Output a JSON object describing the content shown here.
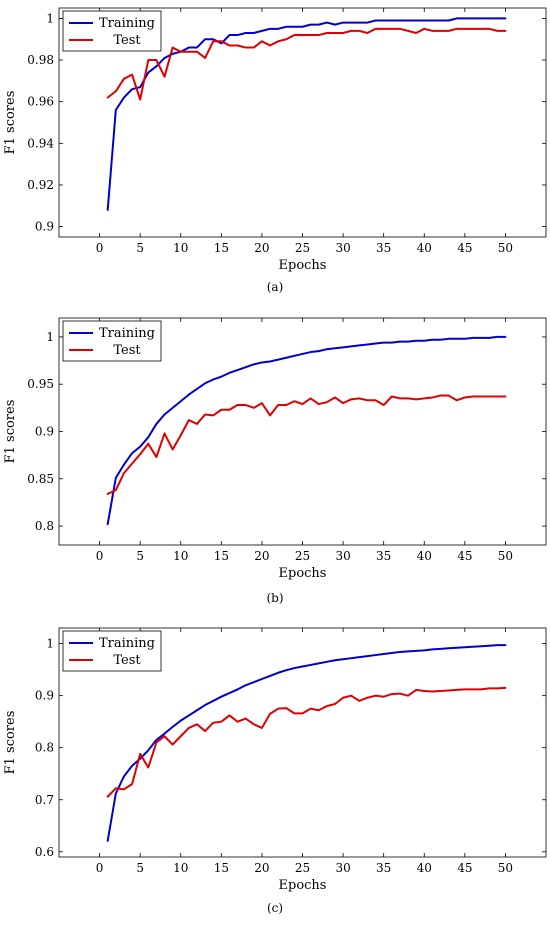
{
  "chart_data": [
    {
      "type": "line",
      "caption": "(a)",
      "xlabel": "Epochs",
      "ylabel": "F1 scores",
      "xlim": [
        -5,
        55
      ],
      "ylim": [
        0.895,
        1.005
      ],
      "xticks": [
        0,
        5,
        10,
        15,
        20,
        25,
        30,
        35,
        40,
        45,
        50
      ],
      "yticks": [
        0.9,
        0.92,
        0.94,
        0.96,
        0.98,
        1
      ],
      "ytick_labels": [
        "0.9",
        "0.92",
        "0.94",
        "0.96",
        "0.98",
        "1"
      ],
      "legend_position": "top-left",
      "x": [
        1,
        2,
        3,
        4,
        5,
        6,
        7,
        8,
        9,
        10,
        11,
        12,
        13,
        14,
        15,
        16,
        17,
        18,
        19,
        20,
        21,
        22,
        23,
        24,
        25,
        26,
        27,
        28,
        29,
        30,
        31,
        32,
        33,
        34,
        35,
        36,
        37,
        38,
        39,
        40,
        41,
        42,
        43,
        44,
        45,
        46,
        47,
        48,
        49,
        50
      ],
      "series": [
        {
          "name": "Training",
          "color": "#0000cc",
          "values": [
            0.908,
            0.956,
            0.962,
            0.966,
            0.967,
            0.974,
            0.977,
            0.981,
            0.983,
            0.984,
            0.986,
            0.986,
            0.99,
            0.99,
            0.988,
            0.992,
            0.992,
            0.993,
            0.993,
            0.994,
            0.995,
            0.995,
            0.996,
            0.996,
            0.996,
            0.997,
            0.997,
            0.998,
            0.997,
            0.998,
            0.998,
            0.998,
            0.998,
            0.999,
            0.999,
            0.999,
            0.999,
            0.999,
            0.999,
            0.999,
            0.999,
            0.999,
            0.999,
            1.0,
            1.0,
            1.0,
            1.0,
            1.0,
            1.0,
            1.0
          ]
        },
        {
          "name": "Test",
          "color": "#e00000",
          "values": [
            0.962,
            0.965,
            0.971,
            0.973,
            0.961,
            0.98,
            0.98,
            0.972,
            0.986,
            0.984,
            0.984,
            0.984,
            0.981,
            0.989,
            0.989,
            0.987,
            0.987,
            0.986,
            0.986,
            0.989,
            0.987,
            0.989,
            0.99,
            0.992,
            0.992,
            0.992,
            0.992,
            0.993,
            0.993,
            0.993,
            0.994,
            0.994,
            0.993,
            0.995,
            0.995,
            0.995,
            0.995,
            0.994,
            0.993,
            0.995,
            0.994,
            0.994,
            0.994,
            0.995,
            0.995,
            0.995,
            0.995,
            0.995,
            0.994,
            0.994
          ]
        }
      ]
    },
    {
      "type": "line",
      "caption": "(b)",
      "xlabel": "Epochs",
      "ylabel": "F1 scores",
      "xlim": [
        -5,
        55
      ],
      "ylim": [
        0.78,
        1.02
      ],
      "xticks": [
        0,
        5,
        10,
        15,
        20,
        25,
        30,
        35,
        40,
        45,
        50
      ],
      "yticks": [
        0.8,
        0.85,
        0.9,
        0.95,
        1
      ],
      "ytick_labels": [
        "0.8",
        "0.85",
        "0.9",
        "0.95",
        "1"
      ],
      "legend_position": "top-left",
      "x": [
        1,
        2,
        3,
        4,
        5,
        6,
        7,
        8,
        9,
        10,
        11,
        12,
        13,
        14,
        15,
        16,
        17,
        18,
        19,
        20,
        21,
        22,
        23,
        24,
        25,
        26,
        27,
        28,
        29,
        30,
        31,
        32,
        33,
        34,
        35,
        36,
        37,
        38,
        39,
        40,
        41,
        42,
        43,
        44,
        45,
        46,
        47,
        48,
        49,
        50
      ],
      "series": [
        {
          "name": "Training",
          "color": "#0000cc",
          "values": [
            0.802,
            0.851,
            0.865,
            0.877,
            0.884,
            0.894,
            0.908,
            0.918,
            0.925,
            0.932,
            0.939,
            0.945,
            0.951,
            0.955,
            0.958,
            0.962,
            0.965,
            0.968,
            0.971,
            0.973,
            0.974,
            0.976,
            0.978,
            0.98,
            0.982,
            0.984,
            0.985,
            0.987,
            0.988,
            0.989,
            0.99,
            0.991,
            0.992,
            0.993,
            0.994,
            0.994,
            0.995,
            0.995,
            0.996,
            0.996,
            0.997,
            0.997,
            0.998,
            0.998,
            0.998,
            0.999,
            0.999,
            0.999,
            1.0,
            1.0
          ]
        },
        {
          "name": "Test",
          "color": "#e00000",
          "values": [
            0.834,
            0.838,
            0.856,
            0.866,
            0.876,
            0.887,
            0.873,
            0.898,
            0.881,
            0.896,
            0.912,
            0.908,
            0.918,
            0.917,
            0.923,
            0.923,
            0.928,
            0.928,
            0.925,
            0.93,
            0.917,
            0.928,
            0.928,
            0.932,
            0.929,
            0.935,
            0.929,
            0.931,
            0.936,
            0.93,
            0.934,
            0.935,
            0.933,
            0.933,
            0.928,
            0.937,
            0.935,
            0.935,
            0.934,
            0.935,
            0.936,
            0.938,
            0.938,
            0.933,
            0.936,
            0.937,
            0.937,
            0.937,
            0.937,
            0.937
          ]
        }
      ]
    },
    {
      "type": "line",
      "caption": "(c)",
      "xlabel": "Epochs",
      "ylabel": "F1 scores",
      "xlim": [
        -5,
        55
      ],
      "ylim": [
        0.59,
        1.03
      ],
      "xticks": [
        0,
        5,
        10,
        15,
        20,
        25,
        30,
        35,
        40,
        45,
        50
      ],
      "yticks": [
        0.6,
        0.7,
        0.8,
        0.9,
        1
      ],
      "ytick_labels": [
        "0.6",
        "0.7",
        "0.8",
        "0.9",
        "1"
      ],
      "legend_position": "top-left",
      "x": [
        1,
        2,
        3,
        4,
        5,
        6,
        7,
        8,
        9,
        10,
        11,
        12,
        13,
        14,
        15,
        16,
        17,
        18,
        19,
        20,
        21,
        22,
        23,
        24,
        25,
        26,
        27,
        28,
        29,
        30,
        31,
        32,
        33,
        34,
        35,
        36,
        37,
        38,
        39,
        40,
        41,
        42,
        43,
        44,
        45,
        46,
        47,
        48,
        49,
        50
      ],
      "series": [
        {
          "name": "Training",
          "color": "#0000cc",
          "values": [
            0.621,
            0.712,
            0.745,
            0.765,
            0.779,
            0.795,
            0.815,
            0.827,
            0.84,
            0.852,
            0.862,
            0.872,
            0.882,
            0.89,
            0.898,
            0.905,
            0.912,
            0.92,
            0.926,
            0.932,
            0.938,
            0.944,
            0.949,
            0.953,
            0.956,
            0.959,
            0.962,
            0.965,
            0.968,
            0.97,
            0.972,
            0.974,
            0.976,
            0.978,
            0.98,
            0.982,
            0.984,
            0.985,
            0.986,
            0.987,
            0.989,
            0.99,
            0.991,
            0.992,
            0.993,
            0.994,
            0.995,
            0.996,
            0.997,
            0.997
          ]
        },
        {
          "name": "Test",
          "color": "#e00000",
          "values": [
            0.706,
            0.722,
            0.72,
            0.73,
            0.788,
            0.762,
            0.81,
            0.822,
            0.806,
            0.822,
            0.838,
            0.845,
            0.832,
            0.848,
            0.85,
            0.862,
            0.85,
            0.856,
            0.845,
            0.838,
            0.865,
            0.875,
            0.876,
            0.866,
            0.866,
            0.875,
            0.872,
            0.88,
            0.884,
            0.896,
            0.9,
            0.89,
            0.896,
            0.9,
            0.898,
            0.903,
            0.904,
            0.9,
            0.911,
            0.909,
            0.908,
            0.909,
            0.91,
            0.911,
            0.912,
            0.912,
            0.912,
            0.914,
            0.914,
            0.915
          ]
        }
      ]
    }
  ]
}
